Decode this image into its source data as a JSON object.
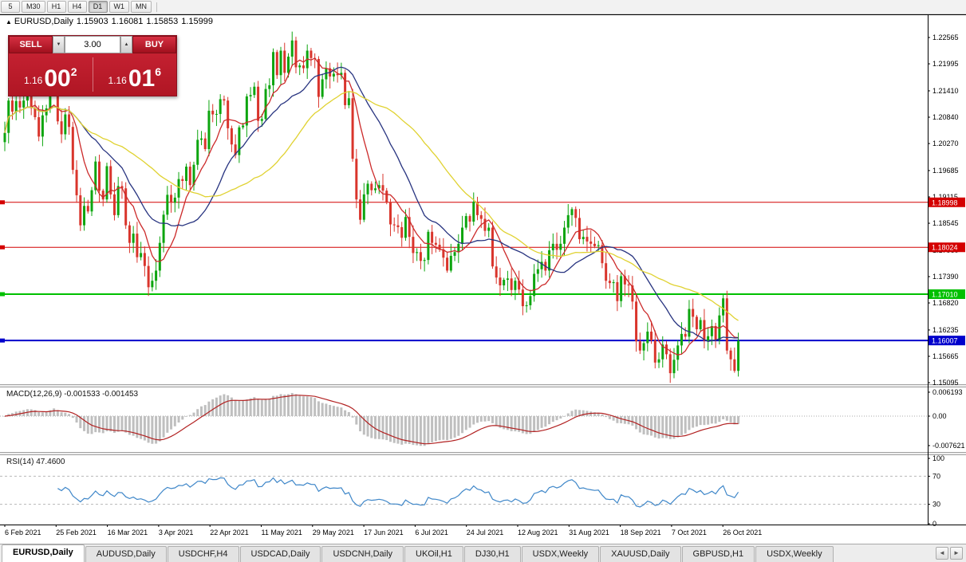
{
  "toolbar": {
    "timeframes": [
      "5",
      "M30",
      "H1",
      "H4",
      "D1",
      "W1",
      "MN"
    ],
    "active": "D1"
  },
  "header": {
    "marker_icon": "▲",
    "symbol_title": "EURUSD,Daily",
    "open": "1.15903",
    "high": "1.16081",
    "low": "1.15853",
    "close": "1.15999"
  },
  "trade_panel": {
    "sell_label": "SELL",
    "buy_label": "BUY",
    "volume": "3.00",
    "spin_down_icon": "▼",
    "spin_up_icon": "▲",
    "sell_price_base": "1.16",
    "sell_price_big": "00",
    "sell_price_sup": "2",
    "buy_price_base": "1.16",
    "buy_price_big": "01",
    "buy_price_sup": "6",
    "panel_color": "#c42032"
  },
  "price_axis": {
    "labels": [
      "1.22565",
      "1.21995",
      "1.21410",
      "1.20840",
      "1.20270",
      "1.19685",
      "1.19115",
      "1.18545",
      "1.17960",
      "1.17390",
      "1.16820",
      "1.16235",
      "1.15665",
      "1.15095"
    ]
  },
  "time_axis": {
    "labels": [
      "6 Feb 2021",
      "25 Feb 2021",
      "16 Mar 2021",
      "3 Apr 2021",
      "22 Apr 2021",
      "11 May 2021",
      "29 May 2021",
      "17 Jun 2021",
      "6 Jul 2021",
      "24 Jul 2021",
      "12 Aug 2021",
      "31 Aug 2021",
      "18 Sep 2021",
      "7 Oct 2021",
      "26 Oct 2021"
    ]
  },
  "indicators": {
    "macd": {
      "label": "MACD(12,26,9) -0.001533 -0.001453",
      "axis": [
        "0.006193",
        "0.00",
        "-0.007621"
      ]
    },
    "rsi": {
      "label": "RSI(14) 47.4600",
      "axis": [
        "100",
        "70",
        "30",
        "0"
      ]
    }
  },
  "tabs": {
    "items": [
      "EURUSD,Daily",
      "AUDUSD,Daily",
      "USDCHF,H4",
      "USDCAD,Daily",
      "USDCNH,Daily",
      "UKOil,H1",
      "DJ30,H1",
      "USDX,Weekly",
      "XAUUSD,Daily",
      "GBPUSD,H1",
      "USDX,Weekly"
    ],
    "active_index": 0,
    "scroll_left_icon": "◄",
    "scroll_right_icon": "►"
  },
  "chart_data": {
    "type": "candlestick",
    "title": "EURUSD,Daily",
    "first_open": 1.203,
    "closes": [
      1.205,
      1.212,
      1.2096,
      1.2119,
      1.2105,
      1.212,
      1.2131,
      1.2104,
      1.2084,
      1.2042,
      1.2088,
      1.2103,
      1.216,
      1.217,
      1.2075,
      1.2047,
      1.209,
      1.2063,
      1.197,
      1.1915,
      1.185,
      1.1892,
      1.188,
      1.1926,
      1.1988,
      1.1925,
      1.1906,
      1.1978,
      1.1917,
      1.1872,
      1.1935,
      1.193,
      1.185,
      1.1812,
      1.1832,
      1.1781,
      1.179,
      1.1762,
      1.1716,
      1.173,
      1.1752,
      1.1812,
      1.1873,
      1.1916,
      1.1899,
      1.191,
      1.195,
      1.1946,
      1.1977,
      1.1937,
      1.1981,
      1.2035,
      1.2038,
      1.2015,
      1.2098,
      1.209,
      1.2091,
      1.2123,
      1.212,
      1.206,
      1.2025,
      1.2002,
      1.2062,
      1.2066,
      1.2129,
      1.2132,
      1.215,
      1.2076,
      1.208,
      1.2145,
      1.2153,
      1.2225,
      1.2175,
      1.2228,
      1.218,
      1.2215,
      1.225,
      1.2192,
      1.2196,
      1.219,
      1.2228,
      1.2212,
      1.221,
      1.2128,
      1.2166,
      1.219,
      1.2172,
      1.2178,
      1.2175,
      1.218,
      1.211,
      1.2125,
      1.1994,
      1.1906,
      1.1862,
      1.1917,
      1.194,
      1.1926,
      1.193,
      1.1937,
      1.1925,
      1.19,
      1.1852,
      1.185,
      1.1846,
      1.1823,
      1.1868,
      1.1825,
      1.179,
      1.1792,
      1.1773,
      1.1775,
      1.1836,
      1.1812,
      1.1808,
      1.1798,
      1.178,
      1.1752,
      1.1784,
      1.1792,
      1.181,
      1.1845,
      1.187,
      1.1858,
      1.1901,
      1.1872,
      1.1864,
      1.1838,
      1.1845,
      1.1761,
      1.1737,
      1.172,
      1.1732,
      1.1735,
      1.171,
      1.173,
      1.1711,
      1.1675,
      1.1677,
      1.1697,
      1.1745,
      1.1755,
      1.1771,
      1.1752,
      1.1796,
      1.181,
      1.1797,
      1.181,
      1.1845,
      1.1872,
      1.1885,
      1.1866,
      1.182,
      1.1825,
      1.1815,
      1.181,
      1.1805,
      1.1807,
      1.1768,
      1.173,
      1.1725,
      1.1727,
      1.1686,
      1.174,
      1.1722,
      1.172,
      1.1685,
      1.1599,
      1.1579,
      1.1595,
      1.162,
      1.1601,
      1.1553,
      1.156,
      1.1592,
      1.1571,
      1.153,
      1.1559,
      1.159,
      1.1615,
      1.1609,
      1.1669,
      1.1652,
      1.1625,
      1.1645,
      1.16,
      1.161,
      1.1632,
      1.1602,
      1.1655,
      1.1692,
      1.1579,
      1.156,
      1.1535,
      1.15999
    ],
    "h_lines": [
      {
        "price": 1.18998,
        "label": "1.18998",
        "color": "#d40000",
        "width": 1
      },
      {
        "price": 1.18024,
        "label": "1.18024",
        "color": "#d40000",
        "width": 1
      },
      {
        "price": 1.1701,
        "label": "1.17010",
        "color": "#00c000",
        "width": 2
      },
      {
        "price": 1.16007,
        "label": "1.16007",
        "color": "#0000cc",
        "width": 2
      }
    ],
    "moving_averages": [
      {
        "period": 8,
        "color": "#cc2a2a"
      },
      {
        "period": 20,
        "color": "#283480"
      },
      {
        "period": 40,
        "color": "#e0d231"
      }
    ],
    "candle_up_color": "#0da50f",
    "candle_down_color": "#d9352c",
    "macd": {
      "fast": 12,
      "slow": 26,
      "signal": 9,
      "last_main": -0.001533,
      "last_signal": -0.001453,
      "histogram_color": "#bfbfbf",
      "signal_color": "#b22222",
      "axis_range": {
        "top": 0.006193,
        "bottom": -0.007621
      }
    },
    "rsi": {
      "period": 14,
      "last": 47.46,
      "color": "#3f87c9",
      "levels": [
        70,
        30
      ],
      "range": [
        0,
        100
      ]
    },
    "y_range": {
      "top_price": 1.23066,
      "bottom_price": 1.15095
    }
  }
}
